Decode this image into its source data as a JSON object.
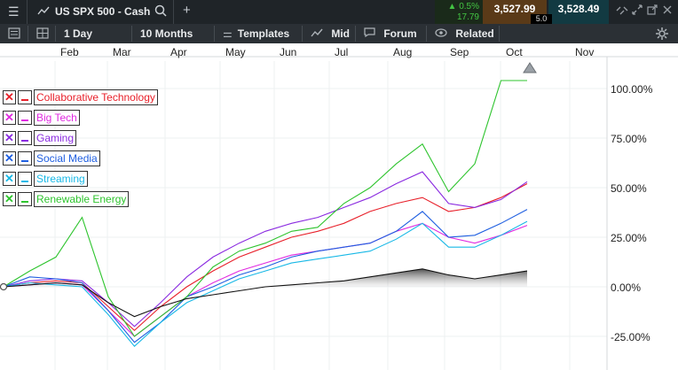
{
  "header": {
    "instrument": "US SPX 500 - Cash",
    "change_pct": "▲ 0.5%",
    "change_abs": "17.79",
    "bid": "3,527.99",
    "ask": "3,528.49",
    "spread": "5.0"
  },
  "toolbar": {
    "interval": "1 Day",
    "range": "10 Months",
    "templates": "Templates",
    "price_type": "Mid",
    "forum": "Forum",
    "related": "Related"
  },
  "chart_data": {
    "type": "line",
    "x_months": [
      "Feb",
      "Mar",
      "Apr",
      "May",
      "Jun",
      "Jul",
      "Aug",
      "Sep",
      "Oct",
      "Nov"
    ],
    "y_ticks": [
      "100.00%",
      "75.00%",
      "50.00%",
      "25.00%",
      "0.00%",
      "-25.00%"
    ],
    "ylim": [
      -35,
      110
    ],
    "x": [
      0,
      1,
      2,
      3,
      4,
      5,
      6,
      7,
      8,
      9,
      10,
      11,
      12,
      13,
      14,
      15,
      16,
      17,
      18,
      19,
      20
    ],
    "series": [
      {
        "name": "Collaborative Technology",
        "color": "#e8202a",
        "values": [
          0,
          2,
          3,
          2,
          -10,
          -22,
          -10,
          0,
          8,
          15,
          20,
          25,
          28,
          32,
          38,
          42,
          45,
          38,
          40,
          45,
          52
        ]
      },
      {
        "name": "Big Tech",
        "color": "#e02ae0",
        "values": [
          0,
          1,
          2,
          1,
          -12,
          -25,
          -15,
          -5,
          2,
          8,
          12,
          16,
          18,
          20,
          22,
          28,
          32,
          25,
          22,
          26,
          31
        ]
      },
      {
        "name": "Gaming",
        "color": "#8a2ae0",
        "values": [
          0,
          3,
          4,
          3,
          -8,
          -20,
          -8,
          5,
          15,
          22,
          28,
          32,
          35,
          40,
          45,
          52,
          58,
          42,
          40,
          44,
          53
        ]
      },
      {
        "name": "Social Media",
        "color": "#1e5ee0",
        "values": [
          0,
          5,
          4,
          2,
          -12,
          -28,
          -18,
          -5,
          0,
          6,
          10,
          15,
          18,
          20,
          22,
          28,
          38,
          25,
          26,
          32,
          39
        ]
      },
      {
        "name": "Streaming",
        "color": "#18b8e6",
        "values": [
          0,
          2,
          1,
          0,
          -14,
          -30,
          -18,
          -8,
          -2,
          4,
          8,
          12,
          14,
          16,
          18,
          24,
          32,
          20,
          20,
          26,
          33
        ]
      },
      {
        "name": "Renewable Energy",
        "color": "#2ec42e",
        "values": [
          0,
          8,
          15,
          35,
          -5,
          -25,
          -15,
          -5,
          10,
          18,
          22,
          28,
          30,
          42,
          50,
          62,
          72,
          48,
          62,
          104,
          104
        ]
      },
      {
        "name": "",
        "color": "#111111",
        "values": [
          0,
          1,
          2,
          1,
          -8,
          -15,
          -10,
          -6,
          -4,
          -2,
          0,
          1,
          2,
          3,
          5,
          7,
          9,
          6,
          4,
          6,
          8
        ]
      }
    ]
  }
}
